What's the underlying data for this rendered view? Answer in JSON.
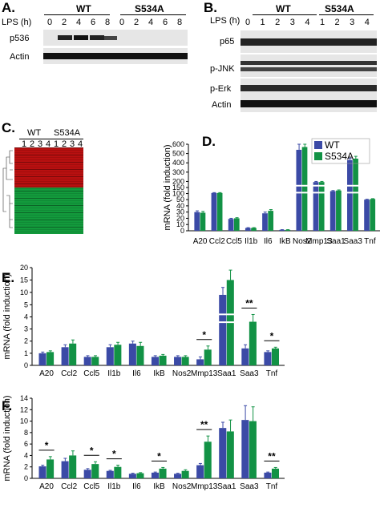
{
  "panelA": {
    "letter": "A.",
    "lps_label": "LPS (h)",
    "wt_label": "WT",
    "mut_label": "S534A",
    "timepoints": [
      "0",
      "2",
      "4",
      "6",
      "8",
      "0",
      "2",
      "4",
      "6",
      "8"
    ],
    "bands": [
      "p536",
      "Actin"
    ]
  },
  "panelB": {
    "letter": "B.",
    "lps_label": "LPS (h)",
    "wt_label": "WT",
    "mut_label": "S534A",
    "timepoints": [
      "0",
      "1",
      "2",
      "3",
      "4",
      "1",
      "2",
      "3",
      "4"
    ],
    "bands": [
      "p65",
      "p-JNK",
      "p-Erk",
      "Actin"
    ]
  },
  "panelC": {
    "letter": "C.",
    "wt_label": "WT",
    "mut_label": "S534A",
    "lanes": [
      "1",
      "2",
      "3",
      "4",
      "1",
      "2",
      "3",
      "4"
    ]
  },
  "colors": {
    "wt": "#3b4aa6",
    "mut": "#129245",
    "heat_red": "#b81010",
    "heat_green": "#139a3c"
  },
  "chart_data": [
    {
      "panel": "D.",
      "type": "bar",
      "ylabel": "mRNA (fold induction)",
      "categories": [
        "A20",
        "Ccl2",
        "Ccl5",
        "Il1b",
        "Il6",
        "IkB",
        "Nos2",
        "Mmp13",
        "Saa1",
        "Saa3",
        "Tnf"
      ],
      "series": [
        {
          "name": "WT",
          "values": [
            30,
            105,
            19,
            4.5,
            28,
            1.5,
            540,
            195,
            120,
            430,
            50
          ]
        },
        {
          "name": "S534A",
          "values": [
            29,
            105,
            20,
            4.5,
            32,
            1.5,
            570,
            195,
            125,
            445,
            55
          ]
        }
      ],
      "errors": [
        [
          2,
          3,
          1,
          0.5,
          2,
          0.3,
          70,
          5,
          5,
          20,
          3
        ],
        [
          2,
          3,
          1,
          0.5,
          2,
          0.3,
          80,
          5,
          5,
          25,
          3
        ]
      ],
      "yticks": [
        "0",
        "10",
        "20",
        "30",
        "40",
        "50",
        "100",
        "150",
        "200",
        "300",
        "400",
        "500",
        "600"
      ]
    },
    {
      "panel": "E.",
      "type": "bar",
      "ylabel": "mRNA (fold induction)",
      "categories": [
        "A20",
        "Ccl2",
        "Ccl5",
        "Il1b",
        "Il6",
        "IkB",
        "Nos2",
        "Mmp13",
        "Saa1",
        "Saa3",
        "Tnf"
      ],
      "series": [
        {
          "name": "WT",
          "values": [
            1.0,
            1.5,
            0.7,
            1.5,
            1.8,
            0.7,
            0.7,
            0.5,
            9.0,
            1.4,
            1.1
          ]
        },
        {
          "name": "S534A",
          "values": [
            1.1,
            1.8,
            0.7,
            1.7,
            1.6,
            0.8,
            0.7,
            1.3,
            15.0,
            3.6,
            1.4
          ]
        }
      ],
      "errors": [
        [
          0.1,
          0.2,
          0.1,
          0.2,
          0.2,
          0.1,
          0.1,
          0.2,
          3.0,
          0.3,
          0.1
        ],
        [
          0.1,
          0.3,
          0.1,
          0.2,
          0.3,
          0.1,
          0.1,
          0.3,
          4.0,
          0.6,
          0.1
        ]
      ],
      "yticks": [
        "0",
        "1",
        "2",
        "3",
        "4",
        "5",
        "10",
        "15",
        "20"
      ],
      "significance": [
        {
          "category": "Mmp13",
          "label": "*"
        },
        {
          "category": "Saa3",
          "label": "**"
        },
        {
          "category": "Tnf",
          "label": "*"
        }
      ]
    },
    {
      "panel": "F.",
      "type": "bar",
      "ylabel": "mRNA (fold induction)",
      "categories": [
        "A20",
        "Ccl2",
        "Ccl5",
        "Il1b",
        "Il6",
        "IkB",
        "Nos2",
        "Mmp13",
        "Saa1",
        "Saa3",
        "Tnf"
      ],
      "series": [
        {
          "name": "WT",
          "values": [
            2.1,
            3.0,
            1.5,
            1.3,
            0.8,
            1.0,
            0.8,
            2.3,
            8.8,
            10.2,
            1.0
          ]
        },
        {
          "name": "S534A",
          "values": [
            3.3,
            4.0,
            2.5,
            2.0,
            0.9,
            1.7,
            1.3,
            6.4,
            8.2,
            10.0,
            1.7
          ]
        }
      ],
      "errors": [
        [
          0.2,
          0.5,
          0.2,
          0.1,
          0.1,
          0.1,
          0.1,
          0.3,
          1.0,
          2.5,
          0.1
        ],
        [
          0.5,
          0.8,
          0.4,
          0.3,
          0.1,
          0.2,
          0.2,
          1.0,
          2.0,
          2.5,
          0.2
        ]
      ],
      "yticks": [
        "0",
        "2",
        "4",
        "6",
        "8",
        "10",
        "12",
        "14"
      ],
      "ylim": [
        0,
        14
      ],
      "significance": [
        {
          "category": "A20",
          "label": "*"
        },
        {
          "category": "Ccl5",
          "label": "*"
        },
        {
          "category": "Il1b",
          "label": "*"
        },
        {
          "category": "IkB",
          "label": "*"
        },
        {
          "category": "Mmp13",
          "label": "**"
        },
        {
          "category": "Tnf",
          "label": "**"
        }
      ]
    }
  ]
}
